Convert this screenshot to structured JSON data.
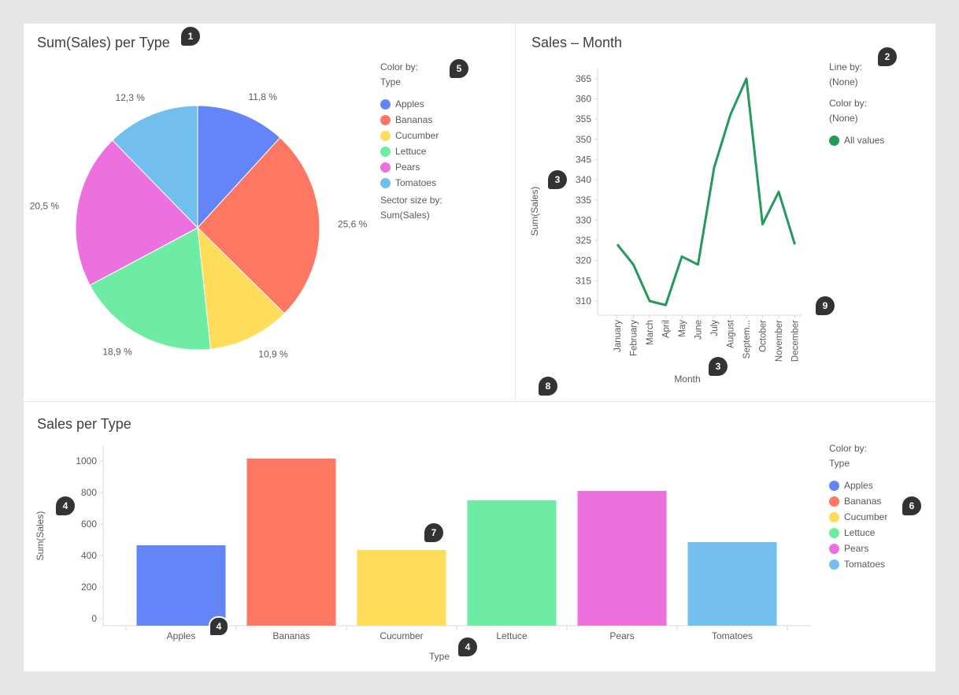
{
  "colors": {
    "Apples": "#6385f8",
    "Bananas": "#fd7763",
    "Cucumber": "#ffdc5a",
    "Lettuce": "#6eeca4",
    "Pears": "#ec71de",
    "Tomatoes": "#72bfee",
    "line": "#23995a"
  },
  "pie_panel": {
    "title": "Sum(Sales) per Type",
    "legend": {
      "color_by_label": "Color by:",
      "color_by_value": "Type",
      "items": [
        "Apples",
        "Bananas",
        "Cucumber",
        "Lettuce",
        "Pears",
        "Tomatoes"
      ],
      "sector_size_label": "Sector size by:",
      "sector_size_value": "Sum(Sales)"
    }
  },
  "line_panel": {
    "title": "Sales – Month",
    "legend": {
      "line_by_label": "Line by:",
      "line_by_value": "(None)",
      "color_by_label": "Color by:",
      "color_by_value": "(None)",
      "item": "All values"
    }
  },
  "bar_panel": {
    "title": "Sales per Type",
    "legend": {
      "color_by_label": "Color by:",
      "color_by_value": "Type",
      "items": [
        "Apples",
        "Bananas",
        "Cucumber",
        "Lettuce",
        "Pears",
        "Tomatoes"
      ]
    }
  },
  "badges": {
    "b1": "1",
    "b2": "2",
    "b3a": "3",
    "b3b": "3",
    "b4a": "4",
    "b4b": "4",
    "b4c": "4",
    "b5": "5",
    "b6": "6",
    "b7": "7",
    "b8": "8",
    "b9": "9"
  },
  "chart_data": [
    {
      "type": "pie",
      "title": "Sum(Sales) per Type",
      "categories": [
        "Apples",
        "Bananas",
        "Cucumber",
        "Lettuce",
        "Pears",
        "Tomatoes"
      ],
      "values": [
        11.8,
        25.6,
        10.9,
        18.9,
        20.5,
        12.3
      ],
      "labels": [
        "11,8 %",
        "25,6 %",
        "10,9 %",
        "18,9 %",
        "20,5 %",
        "12,3 %"
      ],
      "legend": "right"
    },
    {
      "type": "line",
      "title": "Sales – Month",
      "xlabel": "Month",
      "ylabel": "Sum(Sales)",
      "categories": [
        "January",
        "February",
        "March",
        "April",
        "May",
        "June",
        "July",
        "August",
        "Septem...",
        "October",
        "November",
        "December"
      ],
      "series": [
        {
          "name": "All values",
          "values": [
            324,
            319,
            310,
            309,
            321,
            319,
            343,
            356,
            365,
            329,
            337,
            324
          ]
        }
      ],
      "ylim": [
        305,
        368
      ],
      "yticks": [
        310,
        315,
        320,
        325,
        330,
        335,
        340,
        345,
        350,
        355,
        360,
        365
      ],
      "grid": false,
      "legend": "right"
    },
    {
      "type": "bar",
      "title": "Sales per Type",
      "xlabel": "Type",
      "ylabel": "Sum(Sales)",
      "categories": [
        "Apples",
        "Bananas",
        "Cucumber",
        "Lettuce",
        "Pears",
        "Tomatoes"
      ],
      "values": [
        465,
        1015,
        435,
        750,
        810,
        485
      ],
      "ylim": [
        -40,
        1100
      ],
      "yticks": [
        0,
        200,
        400,
        600,
        800,
        1000
      ],
      "grid": false,
      "legend": "right"
    }
  ]
}
